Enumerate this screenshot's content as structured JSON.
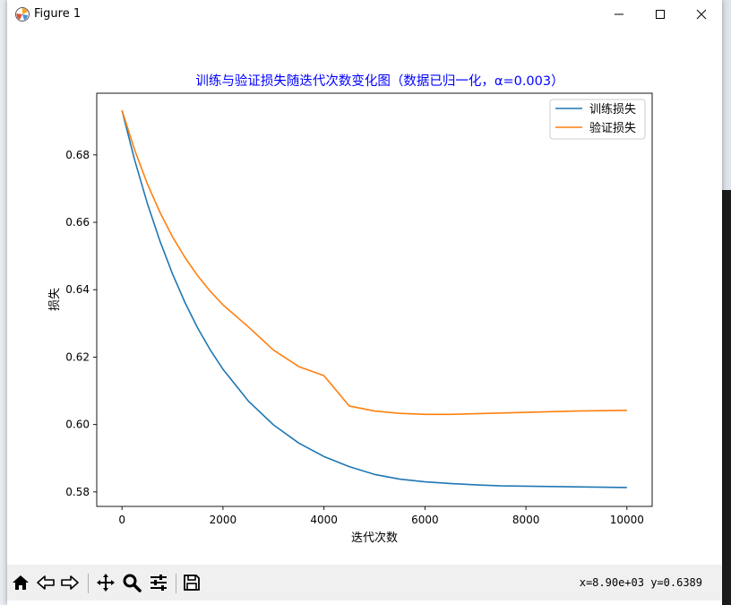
{
  "window": {
    "title": "Figure 1",
    "controls": {
      "minimize": "minimize-icon",
      "maximize": "maximize-icon",
      "close": "close-icon"
    }
  },
  "toolbar": {
    "buttons": [
      "home-icon",
      "back-arrow-icon",
      "forward-arrow-icon",
      "pan-icon",
      "zoom-icon",
      "configure-subplots-icon",
      "save-icon"
    ],
    "coords": "x=8.90e+03 y=0.6389"
  },
  "colors": {
    "title": "#0000ff",
    "train": "#1f77b4",
    "val": "#ff7f0e"
  },
  "chart_data": {
    "type": "line",
    "title": "训练与验证损失随迭代次数变化图（数据已归一化，α=0.003）",
    "xlabel": "迭代次数",
    "ylabel": "损失",
    "xlim": [
      -500,
      10500
    ],
    "ylim": [
      0.5757,
      0.6983
    ],
    "xticks": [
      0,
      2000,
      4000,
      6000,
      8000,
      10000
    ],
    "xtick_labels": [
      "0",
      "2000",
      "4000",
      "6000",
      "8000",
      "10000"
    ],
    "yticks": [
      0.58,
      0.6,
      0.62,
      0.64,
      0.66,
      0.68
    ],
    "ytick_labels": [
      "0.58",
      "0.60",
      "0.62",
      "0.64",
      "0.66",
      "0.68"
    ],
    "grid": false,
    "legend_position": "upper right",
    "x": [
      0,
      250,
      500,
      750,
      1000,
      1250,
      1500,
      1750,
      2000,
      2500,
      3000,
      3500,
      4000,
      4500,
      5000,
      5500,
      6000,
      6500,
      7000,
      7500,
      8000,
      8500,
      9000,
      9500,
      10000
    ],
    "series": [
      {
        "name": "训练损失",
        "values": [
          0.6932,
          0.6785,
          0.6657,
          0.6545,
          0.6447,
          0.6361,
          0.6286,
          0.6221,
          0.6164,
          0.607,
          0.5999,
          0.5945,
          0.5905,
          0.5875,
          0.5852,
          0.5838,
          0.583,
          0.5825,
          0.5821,
          0.5818,
          0.5817,
          0.5816,
          0.5815,
          0.5814,
          0.5813
        ]
      },
      {
        "name": "验证损失",
        "values": [
          0.6932,
          0.6815,
          0.6715,
          0.663,
          0.6557,
          0.6495,
          0.6441,
          0.6395,
          0.6355,
          0.629,
          0.6221,
          0.6172,
          0.6145,
          0.6055,
          0.604,
          0.6033,
          0.603,
          0.603,
          0.6032,
          0.6034,
          0.6036,
          0.6038,
          0.604,
          0.6041,
          0.6042
        ]
      }
    ]
  }
}
